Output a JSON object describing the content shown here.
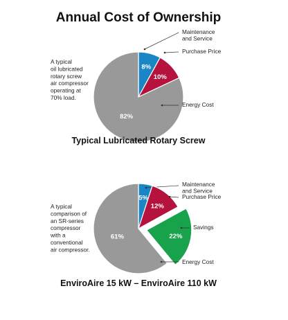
{
  "title": "Annual Cost  of Ownership",
  "colors": {
    "maintenance": "#1a86c6",
    "purchase": "#b5123e",
    "energy": "#999999",
    "savings": "#17a24b"
  },
  "chart_data": [
    {
      "type": "pie",
      "title": "Typical Lubricated Rotary Screw",
      "note": [
        "A typical",
        "oil lubricated",
        "rotary screw",
        "air compressor",
        "operating at",
        "70% load."
      ],
      "slices": [
        {
          "key": "maintenance",
          "label": "Maintenance and Service",
          "label_lines": [
            "Maintenance",
            "and Service"
          ],
          "value": 8,
          "value_label": "8%",
          "color": "#1a86c6",
          "exploded": false
        },
        {
          "key": "purchase",
          "label": "Purchase Price",
          "label_lines": [
            "Purchase Price"
          ],
          "value": 10,
          "value_label": "10%",
          "color": "#b5123e",
          "exploded": false
        },
        {
          "key": "energy",
          "label": "Energy Cost",
          "label_lines": [
            "Energy Cost"
          ],
          "value": 82,
          "value_label": "82%",
          "color": "#999999",
          "exploded": false
        }
      ]
    },
    {
      "type": "pie",
      "title": "EnviroAire 15 kW – EnviroAire 110 kW",
      "note": [
        "A typical",
        "comparison of",
        "an SR-series",
        "compressor",
        "with a",
        "conventional",
        "air compressor."
      ],
      "slices": [
        {
          "key": "maintenance",
          "label": "Maintenance and Service",
          "label_lines": [
            "Maintenance",
            "and Service"
          ],
          "value": 5,
          "value_label": "5%",
          "color": "#1a86c6",
          "exploded": false
        },
        {
          "key": "purchase",
          "label": "Purchase Price",
          "label_lines": [
            "Purchase Price"
          ],
          "value": 12,
          "value_label": "12%",
          "color": "#b5123e",
          "exploded": false
        },
        {
          "key": "savings",
          "label": "Savings",
          "label_lines": [
            "Savings"
          ],
          "value": 22,
          "value_label": "22%",
          "color": "#17a24b",
          "exploded": true
        },
        {
          "key": "energy",
          "label": "Energy Cost",
          "label_lines": [
            "Energy Cost"
          ],
          "value": 61,
          "value_label": "61%",
          "color": "#999999",
          "exploded": false
        }
      ]
    }
  ]
}
